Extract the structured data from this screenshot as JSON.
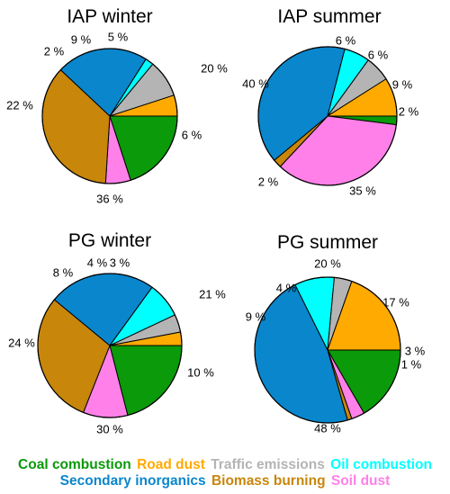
{
  "colors": {
    "Coal combustion": "#0a9a0a",
    "Road dust": "#ffaa00",
    "Traffic emissions": "#b4b4b4",
    "Oil combustion": "#00ffff",
    "Secondary inorganics": "#0a86cc",
    "Biomass burning": "#c8860a",
    "Soil dust": "#ff80e8"
  },
  "chart_data": [
    {
      "type": "pie",
      "title": "IAP winter",
      "slices": [
        {
          "name": "Coal combustion",
          "value": 20,
          "label": "20 %"
        },
        {
          "name": "Soil dust",
          "value": 6,
          "label": "6 %"
        },
        {
          "name": "Biomass burning",
          "value": 36,
          "label": "36 %"
        },
        {
          "name": "Secondary inorganics",
          "value": 22,
          "label": "22 %"
        },
        {
          "name": "Oil combustion",
          "value": 2,
          "label": "2 %"
        },
        {
          "name": "Traffic emissions",
          "value": 9,
          "label": "9 %"
        },
        {
          "name": "Road dust",
          "value": 5,
          "label": "5 %"
        }
      ]
    },
    {
      "type": "pie",
      "title": "IAP summer",
      "slices": [
        {
          "name": "Coal combustion",
          "value": 2,
          "label": "2 %"
        },
        {
          "name": "Soil dust",
          "value": 35,
          "label": "35 %"
        },
        {
          "name": "Biomass burning",
          "value": 2,
          "label": "2 %"
        },
        {
          "name": "Secondary inorganics",
          "value": 40,
          "label": "40 %"
        },
        {
          "name": "Oil combustion",
          "value": 6,
          "label": "6 %"
        },
        {
          "name": "Traffic emissions",
          "value": 6,
          "label": "6 %"
        },
        {
          "name": "Road dust",
          "value": 9,
          "label": "9 %"
        }
      ]
    },
    {
      "type": "pie",
      "title": "PG winter",
      "slices": [
        {
          "name": "Coal combustion",
          "value": 21,
          "label": "21 %"
        },
        {
          "name": "Soil dust",
          "value": 10,
          "label": "10 %"
        },
        {
          "name": "Biomass burning",
          "value": 30,
          "label": "30 %"
        },
        {
          "name": "Secondary inorganics",
          "value": 24,
          "label": "24 %"
        },
        {
          "name": "Oil combustion",
          "value": 8,
          "label": "8 %"
        },
        {
          "name": "Traffic emissions",
          "value": 4,
          "label": "4 %"
        },
        {
          "name": "Road dust",
          "value": 3,
          "label": "3 %"
        }
      ]
    },
    {
      "type": "pie",
      "title": "PG summer",
      "slices": [
        {
          "name": "Coal combustion",
          "value": 17,
          "label": "17 %"
        },
        {
          "name": "Soil dust",
          "value": 3,
          "label": "3 %"
        },
        {
          "name": "Biomass burning",
          "value": 1,
          "label": "1 %"
        },
        {
          "name": "Secondary inorganics",
          "value": 48,
          "label": "48 %"
        },
        {
          "name": "Oil combustion",
          "value": 9,
          "label": "9 %"
        },
        {
          "name": "Traffic emissions",
          "value": 4,
          "label": "4 %"
        },
        {
          "name": "Road dust",
          "value": 20,
          "label": "20 %"
        }
      ]
    }
  ],
  "legend": {
    "row1": [
      "Coal combustion",
      "Road dust",
      "Traffic emissions",
      "Oil combustion"
    ],
    "row2": [
      "Secondary inorganics",
      "Biomass burning",
      "Soil dust"
    ]
  }
}
